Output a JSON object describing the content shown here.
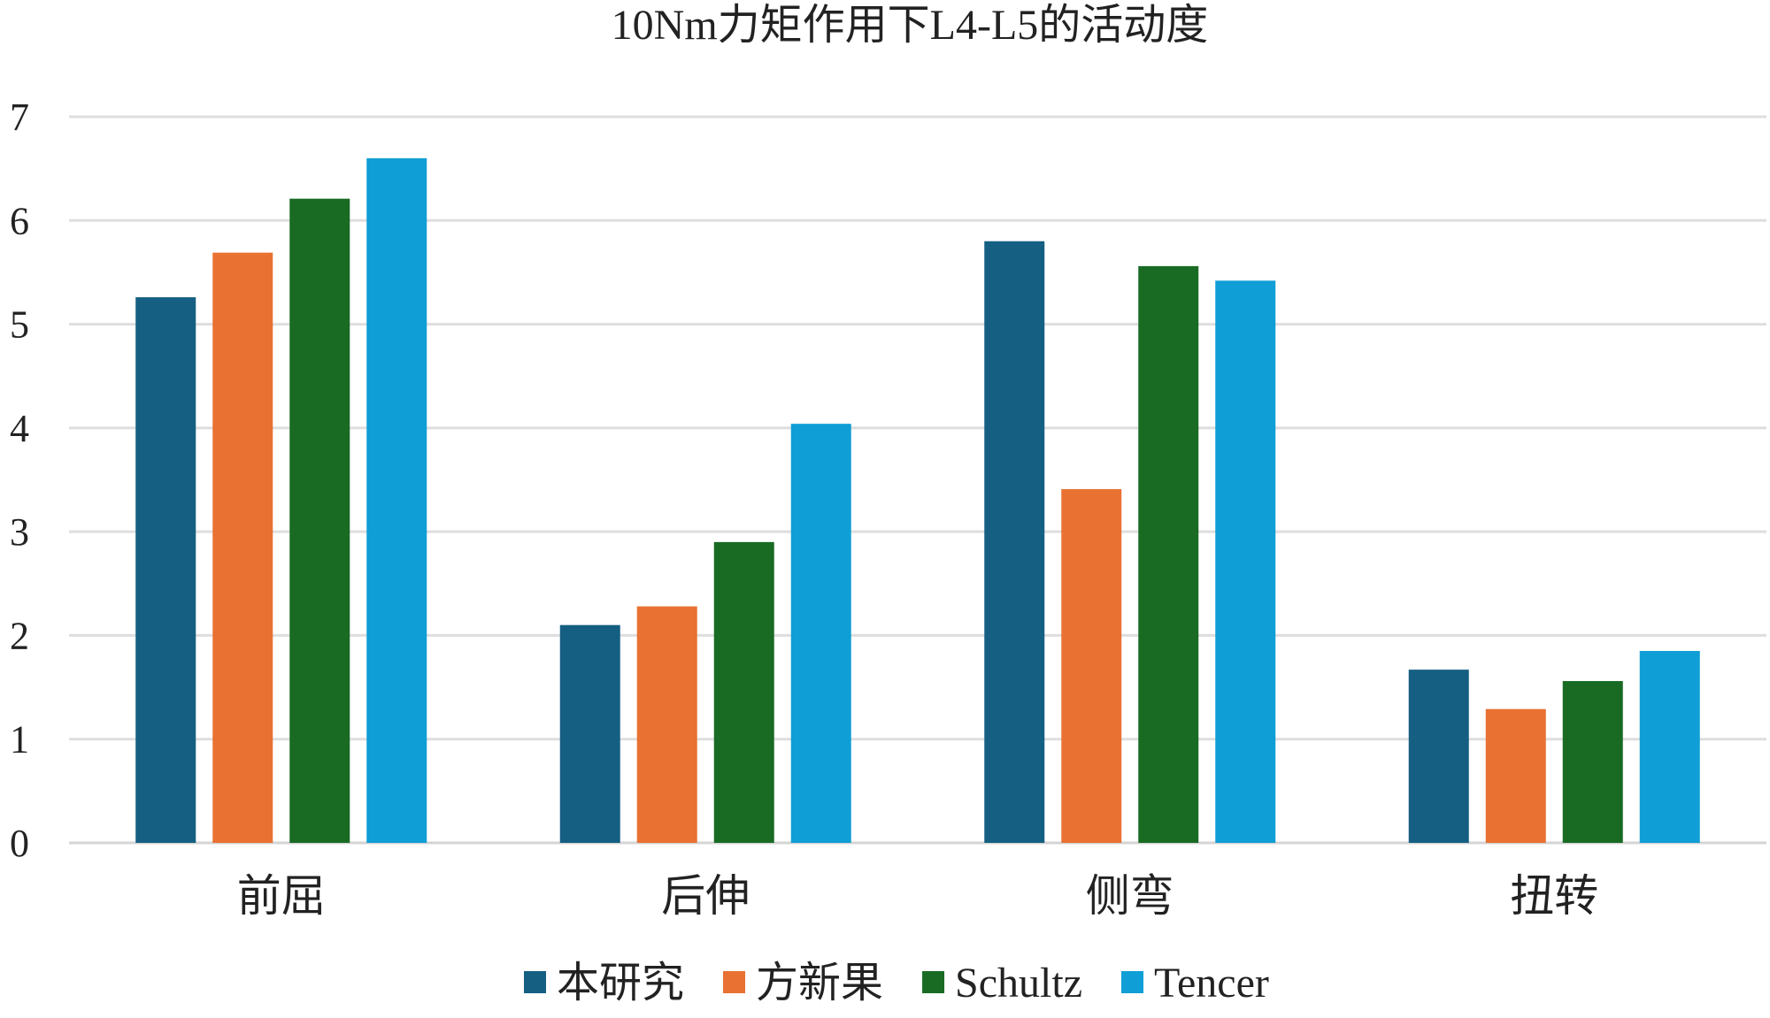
{
  "chart_data": {
    "type": "bar",
    "title": "10Nm力矩作用下L4-L5的活动度",
    "xlabel": "",
    "ylabel": "",
    "ylim": [
      0,
      7
    ],
    "yticks": [
      0,
      1,
      2,
      3,
      4,
      5,
      6,
      7
    ],
    "categories": [
      "前屈",
      "后伸",
      "侧弯",
      "扭转"
    ],
    "series": [
      {
        "name": "本研究",
        "color": "#155f82",
        "values": [
          5.26,
          2.1,
          5.8,
          1.67
        ]
      },
      {
        "name": "方新果",
        "color": "#e97132",
        "values": [
          5.69,
          2.28,
          3.41,
          1.29
        ]
      },
      {
        "name": "Schultz",
        "color": "#196b24",
        "values": [
          6.21,
          2.9,
          5.56,
          1.56
        ]
      },
      {
        "name": "Tencer",
        "color": "#0f9ed5",
        "values": [
          6.6,
          4.04,
          5.42,
          1.85
        ]
      }
    ],
    "grid": true,
    "legend": "bottom"
  }
}
